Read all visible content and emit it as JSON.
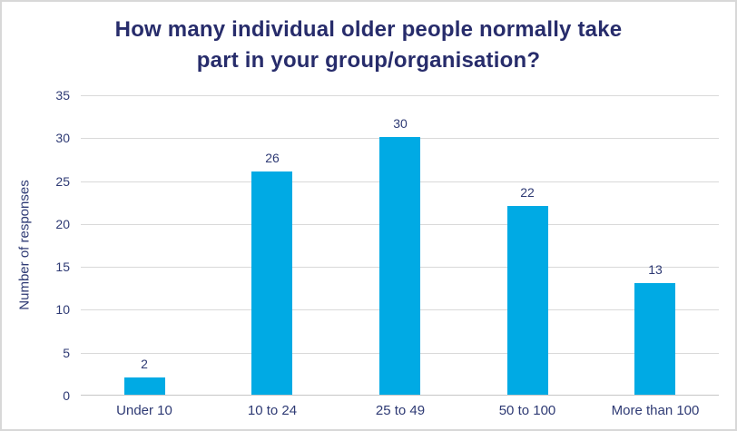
{
  "chart_data": {
    "type": "bar",
    "title": "How many individual older people normally take part in your group/organisation?",
    "title_lines": [
      "How many individual older people normally take",
      "part in your group/organisation?"
    ],
    "categories": [
      "Under 10",
      "10 to 24",
      "25 to 49",
      "50 to 100",
      "More than 100"
    ],
    "values": [
      2,
      26,
      30,
      22,
      13
    ],
    "xlabel": "",
    "ylabel": "Number of responses",
    "ylim": [
      0,
      35
    ],
    "ytick_step": 5,
    "yticks": [
      0,
      5,
      10,
      15,
      20,
      25,
      30,
      35
    ],
    "grid": true,
    "legend": "none",
    "data_labels": true,
    "colors": {
      "bar_fill": "#00aae4",
      "title_text": "#272c6b",
      "axis_text": "#2e3a74",
      "gridline": "#d9d9d9",
      "frame_border": "#d8d8d8",
      "background": "#ffffff"
    }
  }
}
